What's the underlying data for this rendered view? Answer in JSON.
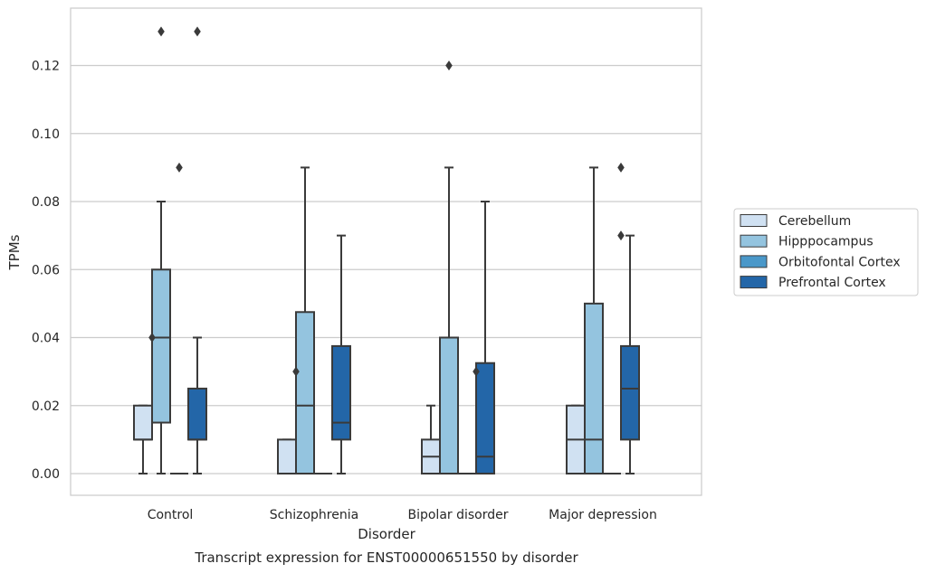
{
  "chart_data": {
    "type": "box",
    "title": "Transcript expression for ENST00000651550 by disorder",
    "xlabel": "Disorder",
    "ylabel": "TPMs",
    "ylim": [
      -0.0065,
      0.1365
    ],
    "yticks": [
      0.0,
      0.02,
      0.04,
      0.06,
      0.08,
      0.1,
      0.12
    ],
    "ytick_labels": [
      "0.00",
      "0.02",
      "0.04",
      "0.06",
      "0.08",
      "0.10",
      "0.12"
    ],
    "grid": true,
    "legend_position": "right",
    "categories": [
      "Control",
      "Schizophrenia",
      "Bipolar disorder",
      "Major depression"
    ],
    "series": [
      {
        "name": "Cerebellum",
        "color": "#d0e1f2",
        "boxes": [
          {
            "whisker_low": 0.0,
            "q1": 0.01,
            "median": 0.01,
            "q3": 0.02,
            "whisker_high": 0.02,
            "outliers": []
          },
          {
            "whisker_low": 0.0,
            "q1": 0.0,
            "median": 0.0,
            "q3": 0.01,
            "whisker_high": 0.01,
            "outliers": []
          },
          {
            "whisker_low": 0.0,
            "q1": 0.0,
            "median": 0.005,
            "q3": 0.01,
            "whisker_high": 0.02,
            "outliers": []
          },
          {
            "whisker_low": 0.0,
            "q1": 0.0,
            "median": 0.01,
            "q3": 0.02,
            "whisker_high": 0.02,
            "outliers": []
          }
        ]
      },
      {
        "name": "Hipppocampus",
        "color": "#94c4df",
        "boxes": [
          {
            "whisker_low": 0.0,
            "q1": 0.015,
            "median": 0.04,
            "q3": 0.06,
            "whisker_high": 0.08,
            "outliers": [
              0.13
            ]
          },
          {
            "whisker_low": 0.0,
            "q1": 0.0,
            "median": 0.02,
            "q3": 0.0475,
            "whisker_high": 0.09,
            "outliers": []
          },
          {
            "whisker_low": 0.0,
            "q1": 0.0,
            "median": 0.0,
            "q3": 0.04,
            "whisker_high": 0.09,
            "outliers": [
              0.12
            ]
          },
          {
            "whisker_low": 0.0,
            "q1": 0.0,
            "median": 0.01,
            "q3": 0.05,
            "whisker_high": 0.09,
            "outliers": []
          }
        ]
      },
      {
        "name": "Orbitofontal Cortex",
        "color": "#4a98c9",
        "boxes": [
          {
            "whisker_low": 0.0,
            "q1": 0.0,
            "median": 0.0,
            "q3": 0.0,
            "whisker_high": 0.0,
            "outliers": [
              0.09
            ]
          },
          {
            "whisker_low": 0.0,
            "q1": 0.0,
            "median": 0.0,
            "q3": 0.0,
            "whisker_high": 0.0,
            "outliers": []
          },
          {
            "whisker_low": 0.0,
            "q1": 0.0,
            "median": 0.0,
            "q3": 0.0,
            "whisker_high": 0.0,
            "outliers": []
          },
          {
            "whisker_low": 0.0,
            "q1": 0.0,
            "median": 0.0,
            "q3": 0.0,
            "whisker_high": 0.0,
            "outliers": []
          }
        ]
      },
      {
        "name": "Prefrontal Cortex",
        "color": "#2366a8",
        "boxes": [
          {
            "whisker_low": 0.0,
            "q1": 0.01,
            "median": 0.01,
            "q3": 0.025,
            "whisker_high": 0.04,
            "outliers": [
              0.13
            ]
          },
          {
            "whisker_low": 0.0,
            "q1": 0.01,
            "median": 0.015,
            "q3": 0.0375,
            "whisker_high": 0.07,
            "outliers": []
          },
          {
            "whisker_low": 0.0,
            "q1": 0.0,
            "median": 0.005,
            "q3": 0.0325,
            "whisker_high": 0.08,
            "outliers": []
          },
          {
            "whisker_low": 0.0,
            "q1": 0.01,
            "median": 0.025,
            "q3": 0.0375,
            "whisker_high": 0.07,
            "outliers": []
          }
        ]
      }
    ],
    "extra_outliers": [
      {
        "category": "Control",
        "between": [
          "Cerebellum",
          "Hipppocampus"
        ],
        "value": 0.04
      },
      {
        "category": "Schizophrenia",
        "between": [
          "Cerebellum",
          "Hipppocampus"
        ],
        "value": 0.03
      },
      {
        "category": "Bipolar disorder",
        "between": [
          "Orbitofontal Cortex",
          "Prefrontal Cortex"
        ],
        "value": 0.03
      },
      {
        "category": "Major depression",
        "between": [
          "Orbitofontal Cortex",
          "Prefrontal Cortex"
        ],
        "value": 0.09
      },
      {
        "category": "Major depression",
        "between": [
          "Orbitofontal Cortex",
          "Prefrontal Cortex"
        ],
        "value": 0.07
      }
    ]
  }
}
